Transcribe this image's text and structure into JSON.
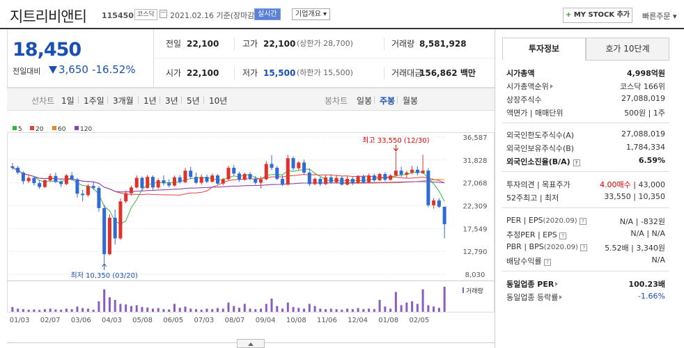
{
  "header": {
    "name": "지트리비앤티",
    "code": "115450",
    "market": "코스닥",
    "date": "2021.02.16  기준(장마감)",
    "realtime": "실시간",
    "company_info": "기업개요 ▾",
    "mystock": "MY STOCK 추가",
    "mystock_plus": "+",
    "fast_order": "빠른주문 ▾"
  },
  "price": {
    "current": "18,450",
    "compare_label": "전일대비",
    "change": "3,650",
    "change_pct": "-16.52%"
  },
  "stats": {
    "prev_label": "전일",
    "prev": "22,100",
    "high_label": "고가",
    "high": "22,100",
    "upper_limit": "(상한가 28,700)",
    "volume_label": "거래량",
    "volume": "8,581,928",
    "open_label": "시가",
    "open": "22,100",
    "low_label": "저가",
    "low": "15,500",
    "lower_limit": "(하한가 15,500)",
    "amount_label": "거래대금",
    "amount": "156,862 백만"
  },
  "period": {
    "line_label": "선차트",
    "items": [
      "1일",
      "1주일",
      "3개월",
      "1년",
      "3년",
      "5년",
      "10년"
    ],
    "candle_label": "봉차트",
    "candle_items": [
      "일봉",
      "주봉",
      "월봉"
    ],
    "candle_active": "주봉"
  },
  "chart_data": {
    "type": "candlestick",
    "legend": [
      {
        "name": "5",
        "color": "#3bb33b"
      },
      {
        "name": "20",
        "color": "#e0403a"
      },
      {
        "name": "60",
        "color": "#e38a25"
      },
      {
        "name": "120",
        "color": "#8b3fbf"
      }
    ],
    "y_ticks": [
      "36,587",
      "31,828",
      "27,068",
      "22,309",
      "17,549",
      "12,790",
      "8,030"
    ],
    "ylim": [
      8030,
      36587
    ],
    "x_ticks": [
      "01/03",
      "02/07",
      "03/06",
      "04/03",
      "05/08",
      "06/05",
      "07/03",
      "08/07",
      "09/04",
      "10/08",
      "11/06",
      "12/04",
      "01/08",
      "02/05"
    ],
    "high_label": "최고 33,550 (12/30)",
    "low_label": "최저 10,350 (03/20)",
    "volume_label": "거래량",
    "candles": [
      [
        30500,
        31200,
        29800,
        30200
      ],
      [
        30200,
        30600,
        28800,
        29200
      ],
      [
        29200,
        29500,
        26800,
        27400
      ],
      [
        27400,
        28600,
        27000,
        28100
      ],
      [
        28100,
        28400,
        26500,
        27000
      ],
      [
        27000,
        27600,
        25800,
        26200
      ],
      [
        26200,
        27800,
        26000,
        27600
      ],
      [
        27600,
        29000,
        27200,
        28500
      ],
      [
        28500,
        29200,
        27000,
        27300
      ],
      [
        27300,
        27600,
        26200,
        26800
      ],
      [
        26800,
        28900,
        26600,
        28600
      ],
      [
        28600,
        29300,
        27500,
        27800
      ],
      [
        27800,
        28100,
        24000,
        24800
      ],
      [
        24800,
        25600,
        23200,
        24500
      ],
      [
        24500,
        26800,
        24200,
        26400
      ],
      [
        26400,
        27200,
        25600,
        26000
      ],
      [
        26000,
        26400,
        21000,
        21800
      ],
      [
        21800,
        22500,
        10350,
        12200
      ],
      [
        12200,
        20500,
        12000,
        19800
      ],
      [
        19800,
        21500,
        14200,
        15500
      ],
      [
        15500,
        23800,
        15200,
        23200
      ],
      [
        23200,
        25500,
        22800,
        24900
      ],
      [
        24900,
        26500,
        24400,
        26100
      ],
      [
        26100,
        28600,
        25900,
        28100
      ],
      [
        28100,
        28400,
        25500,
        26000
      ],
      [
        26000,
        28700,
        25800,
        28300
      ],
      [
        28300,
        28600,
        25600,
        26100
      ],
      [
        26100,
        28000,
        25800,
        27600
      ],
      [
        27600,
        28600,
        26500,
        27000
      ],
      [
        27000,
        27800,
        26100,
        26500
      ],
      [
        26500,
        28600,
        26300,
        28200
      ],
      [
        28200,
        28700,
        26900,
        27200
      ],
      [
        27200,
        30200,
        27000,
        29600
      ],
      [
        29600,
        30400,
        27800,
        28300
      ],
      [
        28300,
        29200,
        26800,
        27100
      ],
      [
        27100,
        28800,
        26700,
        28300
      ],
      [
        28300,
        28800,
        27000,
        27300
      ],
      [
        27300,
        29000,
        27100,
        28600
      ],
      [
        28600,
        28900,
        26700,
        26900
      ],
      [
        26900,
        28100,
        26500,
        27800
      ],
      [
        27800,
        30600,
        27600,
        30200
      ],
      [
        30200,
        30800,
        28600,
        29000
      ],
      [
        29000,
        29400,
        27300,
        27700
      ],
      [
        27700,
        29200,
        27500,
        28900
      ],
      [
        28900,
        29300,
        27600,
        27900
      ],
      [
        27900,
        28500,
        26700,
        27100
      ],
      [
        27100,
        28400,
        25900,
        27800
      ],
      [
        27800,
        31600,
        27600,
        31000
      ],
      [
        31000,
        32800,
        29700,
        30200
      ],
      [
        30200,
        30600,
        27600,
        27900
      ],
      [
        27900,
        28600,
        26400,
        26700
      ],
      [
        26700,
        32900,
        26500,
        32200
      ],
      [
        32200,
        32600,
        29600,
        30100
      ],
      [
        30100,
        31600,
        29700,
        31300
      ],
      [
        31300,
        31900,
        28800,
        29200
      ],
      [
        29200,
        30100,
        26400,
        26800
      ],
      [
        26800,
        28200,
        26600,
        27900
      ],
      [
        27900,
        28300,
        26400,
        26800
      ],
      [
        26800,
        28600,
        26600,
        28200
      ],
      [
        28200,
        28800,
        26800,
        27200
      ],
      [
        27200,
        28700,
        26900,
        28100
      ],
      [
        28100,
        28500,
        26500,
        26700
      ],
      [
        26700,
        28400,
        26500,
        27900
      ],
      [
        27900,
        28300,
        26600,
        27000
      ],
      [
        27000,
        28700,
        26800,
        28400
      ],
      [
        28400,
        28800,
        26900,
        27200
      ],
      [
        27200,
        29000,
        27000,
        28600
      ],
      [
        28600,
        29000,
        27300,
        27600
      ],
      [
        27600,
        29200,
        27400,
        28900
      ],
      [
        28900,
        29300,
        27400,
        27700
      ],
      [
        27700,
        28900,
        27500,
        28600
      ],
      [
        28600,
        33550,
        28400,
        29600
      ],
      [
        29600,
        30400,
        28300,
        28800
      ],
      [
        28800,
        29600,
        28000,
        29200
      ],
      [
        29200,
        30600,
        28800,
        29800
      ],
      [
        29800,
        30500,
        28600,
        29100
      ],
      [
        29100,
        32900,
        28900,
        29600
      ],
      [
        29600,
        30100,
        22000,
        22400
      ],
      [
        22400,
        23900,
        21700,
        23400
      ],
      [
        23400,
        23900,
        21800,
        22100
      ],
      [
        22100,
        22100,
        15500,
        18450
      ]
    ],
    "volumes": [
      0.18,
      0.12,
      0.1,
      0.08,
      0.09,
      0.07,
      0.1,
      0.12,
      0.09,
      0.08,
      0.12,
      0.1,
      0.2,
      0.14,
      0.12,
      0.08,
      0.4,
      0.85,
      0.55,
      0.45,
      0.3,
      0.28,
      0.22,
      0.25,
      0.18,
      0.16,
      0.12,
      0.14,
      0.1,
      0.09,
      0.3,
      0.15,
      0.2,
      0.12,
      0.1,
      0.08,
      0.12,
      0.1,
      0.14,
      0.12,
      0.35,
      0.22,
      0.15,
      0.3,
      0.12,
      0.1,
      0.12,
      0.3,
      0.5,
      0.22,
      0.12,
      0.35,
      0.18,
      0.15,
      0.12,
      0.3,
      0.22,
      0.12,
      0.1,
      0.12,
      0.1,
      0.08,
      0.12,
      0.1,
      0.14,
      0.1,
      0.12,
      0.1,
      0.45,
      0.2,
      0.12,
      0.75,
      0.25,
      0.35,
      0.4,
      0.3,
      0.85,
      0.25,
      0.2,
      0.15,
      0.95
    ]
  },
  "tabs": {
    "invest": "투자정보",
    "orderbook": "호가 10단계"
  },
  "info": {
    "mcap_label": "시가총액",
    "mcap": "4,998억원",
    "mcap_rank_label": "시가총액순위",
    "mcap_rank": "코스닥 166위",
    "shares_label": "상장주식수",
    "shares": "27,088,019",
    "face_label": "액면가 | 매매단위",
    "face": "500원 | 1주",
    "foreign_limit_label": "외국인한도주식수(A)",
    "foreign_limit": "27,088,019",
    "foreign_hold_label": "외국인보유주식수(B)",
    "foreign_hold": "1,784,334",
    "foreign_ratio_label": "외국인소진율(B/A)",
    "foreign_ratio": "6.59%",
    "opinion_label": "투자의견 | 목표주가",
    "opinion": "4.00매수",
    "target": "| 43,000",
    "w52_label": "52주최고 | 최저",
    "w52": "33,550 | 10,350",
    "per_label": "PER | EPS",
    "per_date": "(2020.09)",
    "per": "N/A | -832원",
    "est_label": "추정PER | EPS",
    "est": "N/A | N/A",
    "pbr_label": "PBR | BPS",
    "pbr_date": "(2020.09)",
    "pbr": "5.52배 | 3,340원",
    "div_label": "배당수익률",
    "div": "N/A",
    "ind_per_label": "동일업종 PER",
    "ind_per": "100.23배",
    "ind_rate_label": "동일업종 등락률",
    "ind_rate": "-1.66%"
  }
}
